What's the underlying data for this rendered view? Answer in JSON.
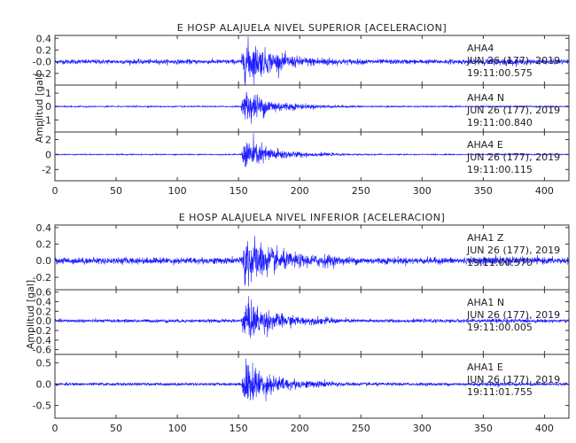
{
  "colors": {
    "trace": "#1a1aff",
    "axis": "#333333",
    "text": "#222222",
    "background": "#ffffff"
  },
  "chart_data": [
    {
      "type": "line",
      "title": "E HOSP ALAJUELA NIVEL SUPERIOR [ACELERACION]",
      "ylabel": "Amplitud [gal]",
      "xlabel": "",
      "xlim": [
        0,
        420
      ],
      "x_ticks": [
        0,
        50,
        100,
        150,
        200,
        250,
        300,
        350,
        400
      ],
      "event_peak_time": 155,
      "channels": [
        {
          "name": "AHA4",
          "ylim": [
            -0.4,
            0.45
          ],
          "y_ticks": [
            -0.2,
            0.0,
            0.2,
            0.4
          ],
          "y_tick_labels": [
            "-0.2",
            "-0.0",
            "0.2",
            "0.4"
          ],
          "noise": 0.035,
          "peak": 0.38,
          "label": {
            "station": "AHA4",
            "date": "JUN 26 (177), 2019",
            "time": "19:11:00.575"
          }
        },
        {
          "name": "AHA4 N",
          "ylim": [
            -1.9,
            1.6
          ],
          "y_ticks": [
            -1,
            0,
            1
          ],
          "y_tick_labels": [
            "-1",
            "0",
            "1"
          ],
          "noise": 0.04,
          "peak": 1.35,
          "label": {
            "station": "AHA4   N",
            "date": "JUN 26 (177), 2019",
            "time": "19:11:00.840"
          }
        },
        {
          "name": "AHA4 E",
          "ylim": [
            -3.5,
            3.0
          ],
          "y_ticks": [
            -2,
            0,
            2
          ],
          "y_tick_labels": [
            "-2",
            "0",
            "2"
          ],
          "noise": 0.06,
          "peak": 2.4,
          "label": {
            "station": "AHA4   E",
            "date": "JUN 26 (177), 2019",
            "time": "19:11:00.115"
          }
        }
      ]
    },
    {
      "type": "line",
      "title": "E HOSP ALAJUELA NIVEL INFERIOR [ACELERACION]",
      "ylabel": "Amplitud [gal]",
      "xlabel": "",
      "xlim": [
        0,
        420
      ],
      "x_ticks": [
        0,
        50,
        100,
        150,
        200,
        250,
        300,
        350,
        400
      ],
      "event_peak_time": 155,
      "channels": [
        {
          "name": "AHA1 Z",
          "ylim": [
            -0.35,
            0.43
          ],
          "y_ticks": [
            -0.2,
            0.0,
            0.2,
            0.4
          ],
          "y_tick_labels": [
            "-0.2",
            "0.0",
            "0.2",
            "0.4"
          ],
          "noise": 0.035,
          "peak": 0.32,
          "label": {
            "station": "AHA1   Z",
            "date": "JUN 26 (177), 2019",
            "time": "19:11:00.570"
          }
        },
        {
          "name": "AHA1 N",
          "ylim": [
            -0.7,
            0.65
          ],
          "y_ticks": [
            -0.6,
            -0.4,
            -0.2,
            0.0,
            0.2,
            0.4,
            0.6
          ],
          "y_tick_labels": [
            "-0.6",
            "-0.4",
            "-0.2",
            "0.0",
            "0.2",
            "0.4",
            "0.6"
          ],
          "noise": 0.03,
          "peak": 0.45,
          "label": {
            "station": "AHA1   N",
            "date": "JUN 26 (177), 2019",
            "time": "19:11:00.005"
          }
        },
        {
          "name": "AHA1 E",
          "ylim": [
            -0.8,
            0.7
          ],
          "y_ticks": [
            -0.5,
            0.0,
            0.5
          ],
          "y_tick_labels": [
            "-0.5",
            "0.0",
            "0.5"
          ],
          "noise": 0.03,
          "peak": 0.55,
          "label": {
            "station": "AHA1   E",
            "date": "JUN 26 (177), 2019",
            "time": "19:11:01.755"
          }
        }
      ]
    }
  ]
}
